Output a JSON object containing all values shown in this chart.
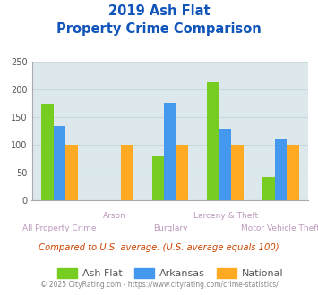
{
  "title_line1": "2019 Ash Flat",
  "title_line2": "Property Crime Comparison",
  "cat_labels_row1": [
    "",
    "Arson",
    "",
    "Larceny & Theft",
    ""
  ],
  "cat_labels_row2": [
    "All Property Crime",
    "",
    "Burglary",
    "",
    "Motor Vehicle Theft"
  ],
  "series": {
    "Ash Flat": [
      175,
      0,
      80,
      213,
      42
    ],
    "Arkansas": [
      135,
      0,
      177,
      130,
      110
    ],
    "National": [
      100,
      100,
      100,
      100,
      100
    ]
  },
  "colors": {
    "Ash Flat": "#77cc22",
    "Arkansas": "#4499ee",
    "National": "#ffaa22"
  },
  "ylim": [
    0,
    250
  ],
  "yticks": [
    0,
    50,
    100,
    150,
    200,
    250
  ],
  "grid_color": "#c8d8dc",
  "bg_color": "#dce8ec",
  "title_color": "#1155bb",
  "note_text": "Compared to U.S. average. (U.S. average equals 100)",
  "note_color": "#cc4400",
  "footer_text": "© 2025 CityRating.com - https://www.cityrating.com/crime-statistics/",
  "footer_color": "#888888",
  "bar_width": 0.22
}
